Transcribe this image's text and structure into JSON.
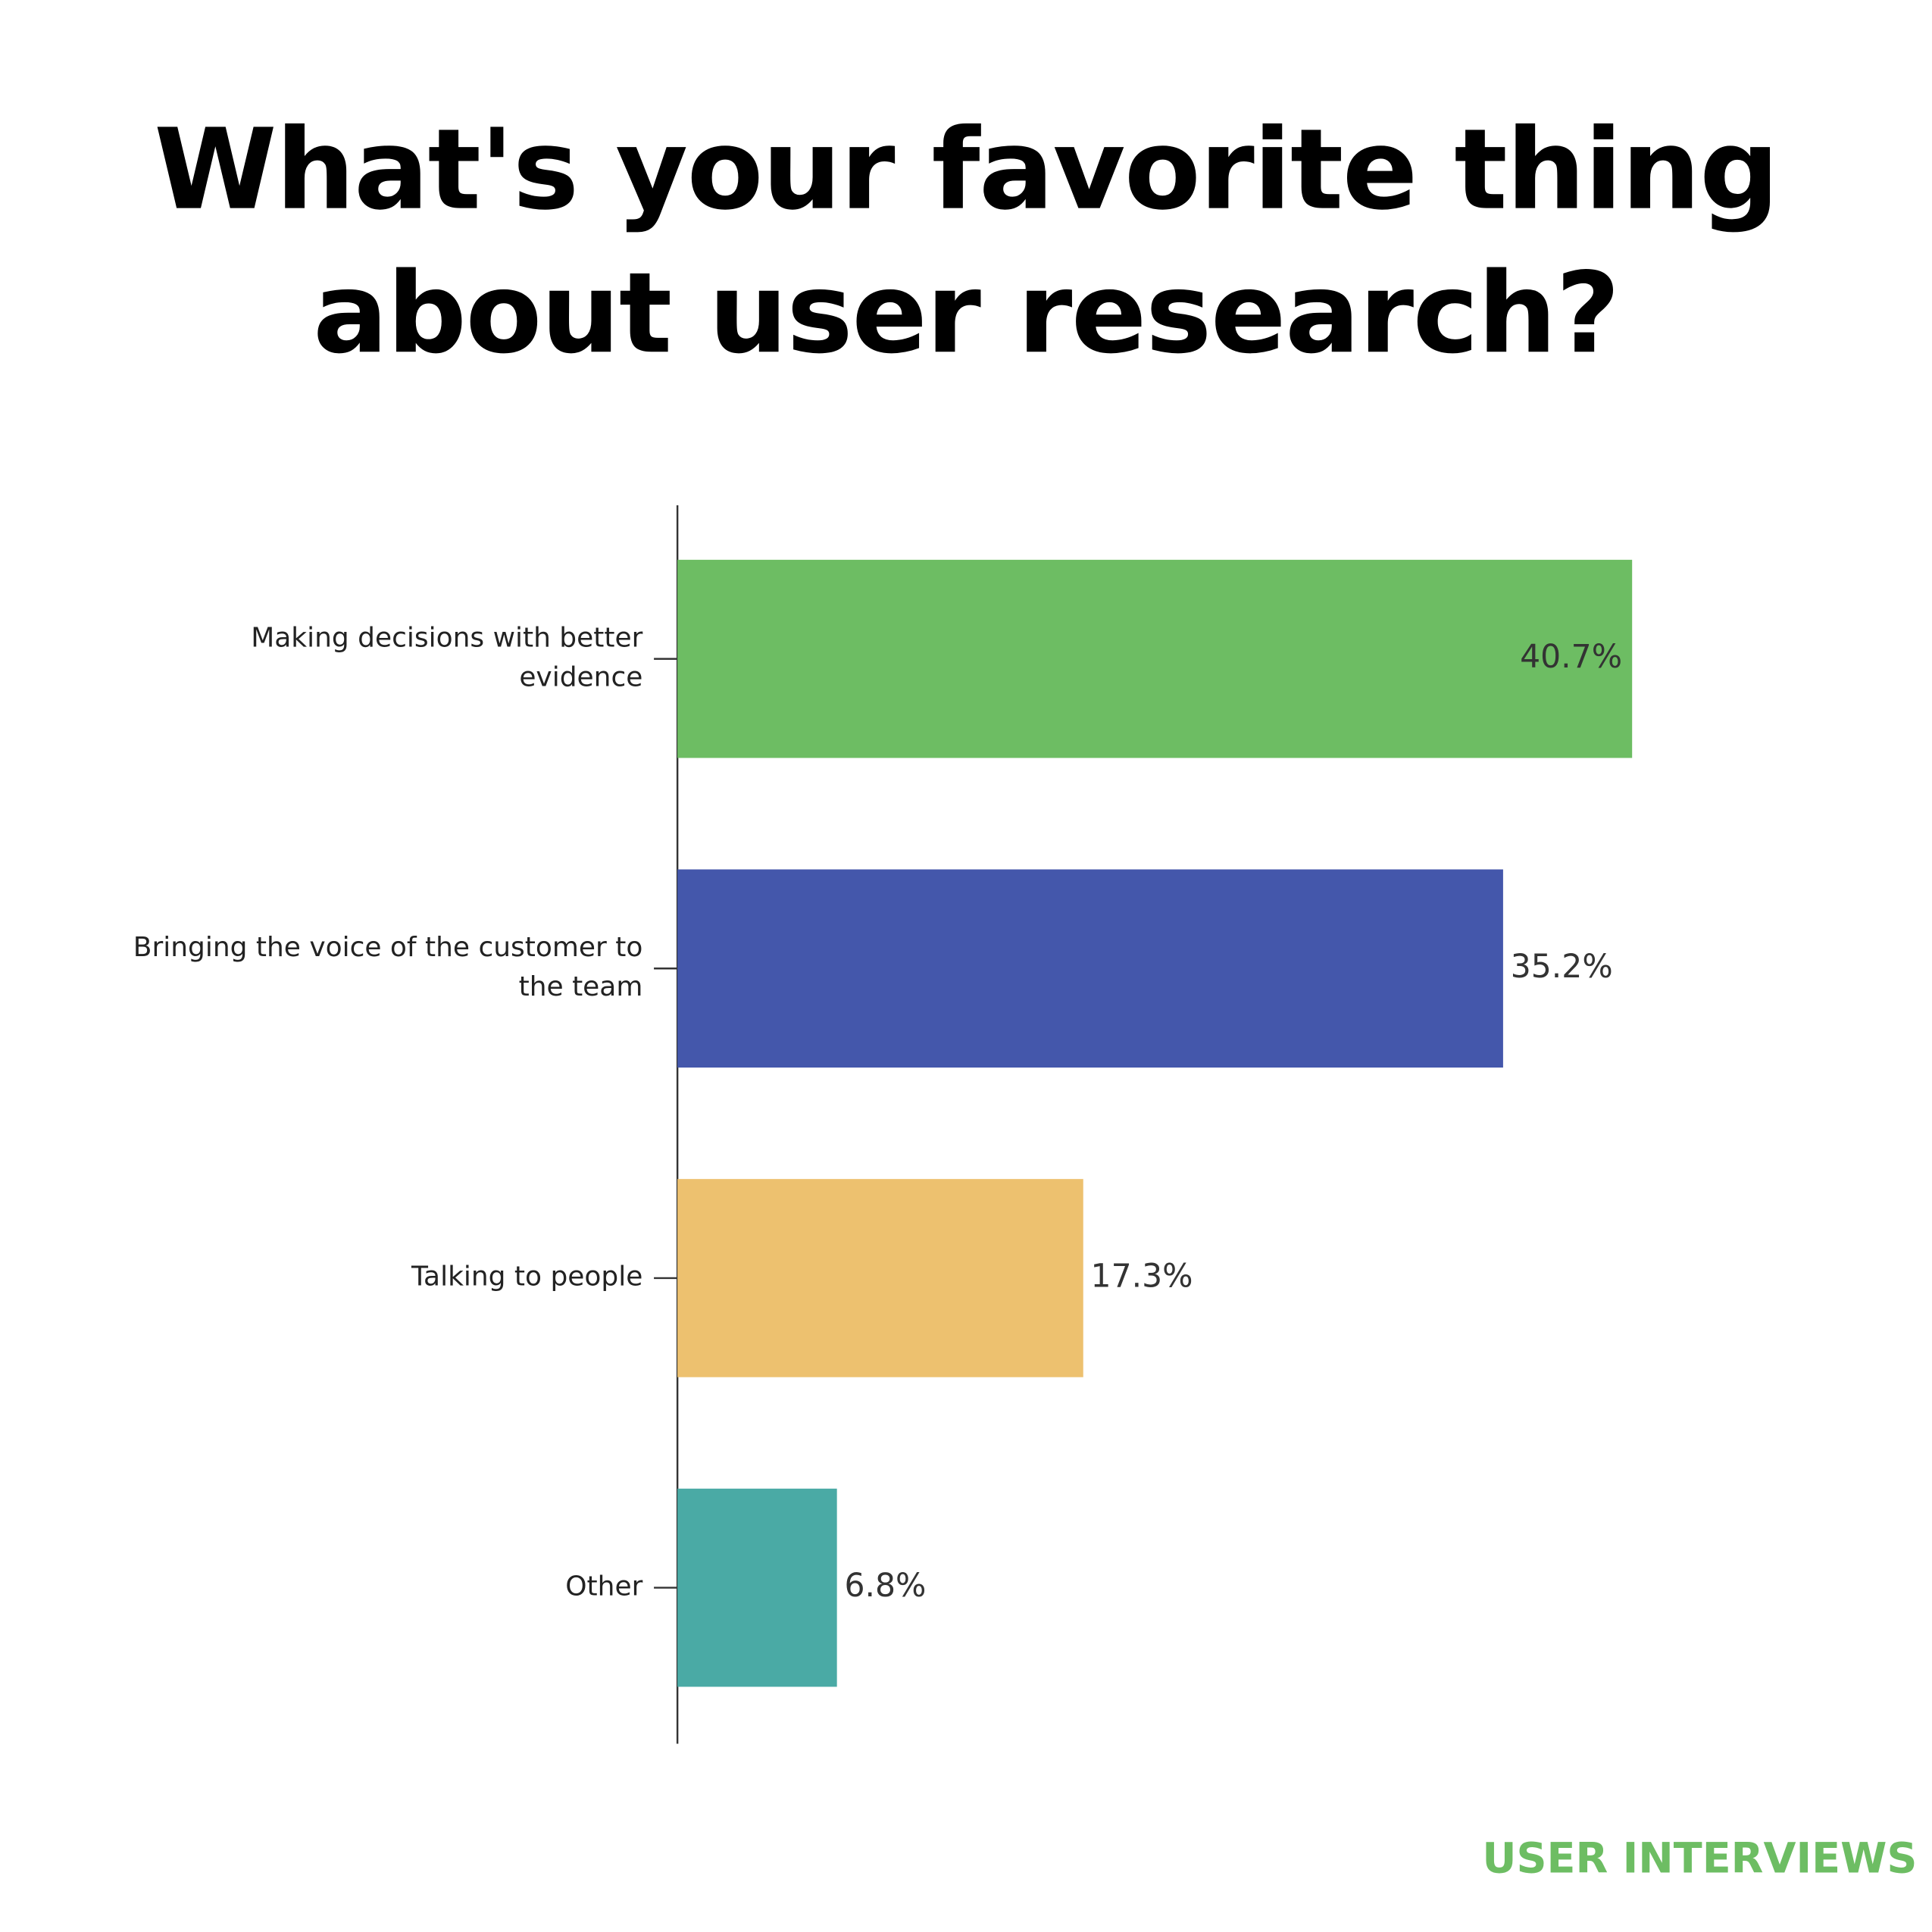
{
  "chart_data": {
    "type": "bar",
    "orientation": "horizontal",
    "title": "What's your favorite thing about user research?",
    "categories": [
      "Making decisions with better evidence",
      "Bringing the voice of the customer to the team",
      "Talking to people",
      "Other"
    ],
    "values": [
      40.7,
      35.2,
      17.3,
      6.8
    ],
    "value_labels": [
      "40.7%",
      "35.2%",
      "17.3%",
      "6.8%"
    ],
    "colors": [
      "#6dbd63",
      "#4457ab",
      "#edc16f",
      "#4aaaa5"
    ],
    "xlim": [
      0,
      50
    ],
    "source": "USER INTERVIEWS"
  }
}
